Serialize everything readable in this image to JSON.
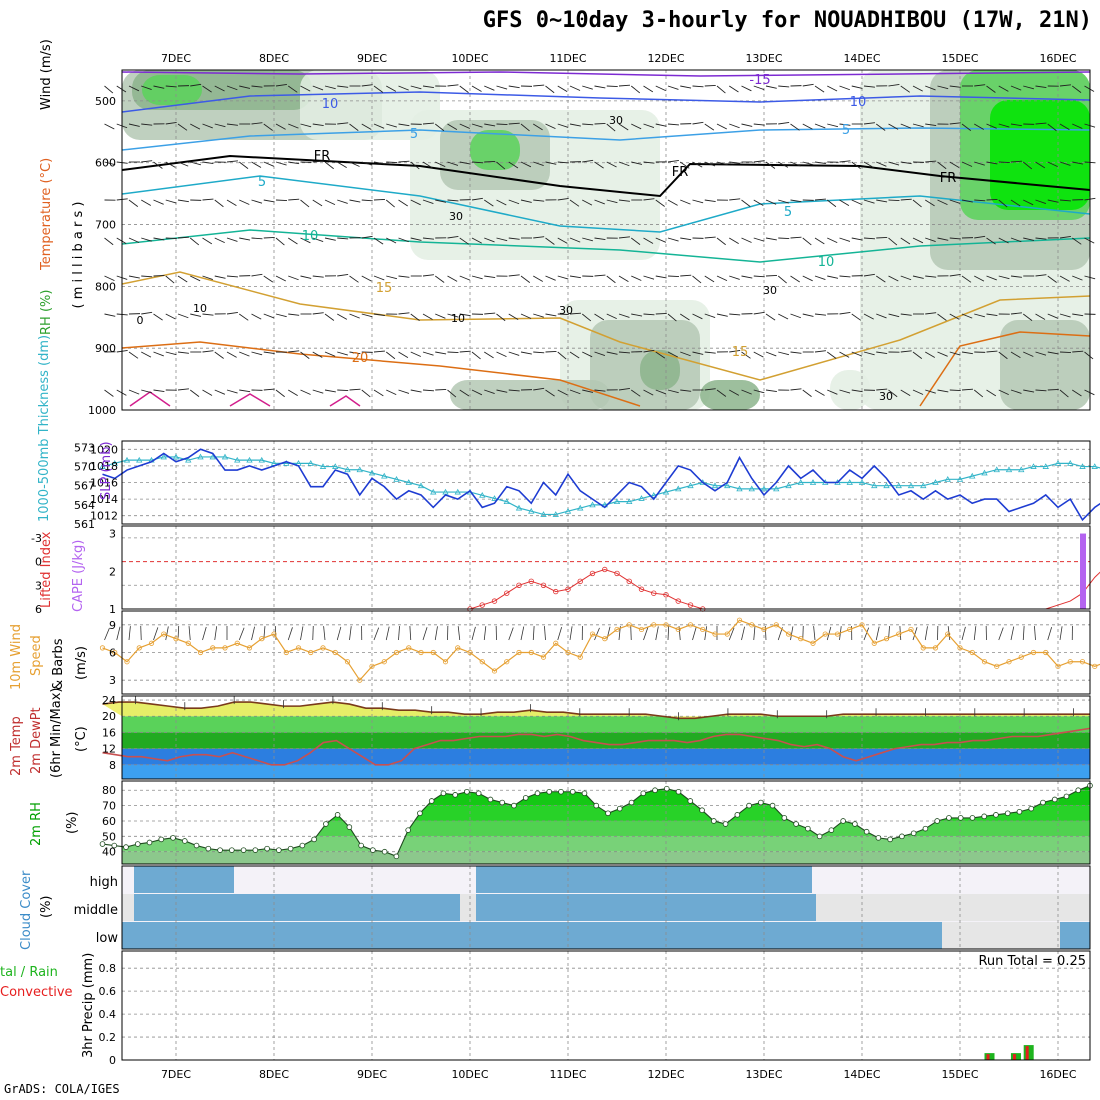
{
  "title": "GFS 0~10day 3-hourly for NOUADHIBOU (17W, 21N)",
  "credit": "GrADS: COLA/IGES",
  "dates": [
    "7DEC",
    "8DEC",
    "9DEC",
    "10DEC",
    "11DEC",
    "12DEC",
    "13DEC",
    "14DEC",
    "15DEC",
    "16DEC"
  ],
  "colors": {
    "grid": "#8c8c8c",
    "rh_light": "#e3efe3",
    "rh_mid": "#b4c8b4",
    "rh_dark": "#8cb48c",
    "rh_green": "#5ad25a",
    "rh_bright": "#00e600",
    "slp": "#1e3cd2",
    "thick": "#32b4c8",
    "li": "#e03232",
    "cape": "#b464f0",
    "wind": "#e6a032",
    "tmax": "#f0f064",
    "dew": "#c85050",
    "rh2": "#00c800",
    "cloud": "#6eaad2",
    "cloud_bg": "#e6e6e6",
    "precip_total": "#1eb41e",
    "precip_conv": "#e61e1e"
  },
  "panels": {
    "upper": {
      "left_labels": [
        "RH (%)",
        "Temperature (°C)",
        "Wind (m/s)"
      ],
      "yaxis_title": "( m i l l i b a r s )",
      "yticks": [
        "500",
        "600",
        "700",
        "800",
        "900",
        "1000"
      ],
      "contour_labels": [
        "-15",
        "10",
        "10",
        "5",
        "5",
        "FR",
        "FR",
        "FR",
        "5",
        "5",
        "10",
        "10",
        "15",
        "15",
        "20",
        "30",
        "30",
        "30",
        "30",
        "30",
        "10",
        "10",
        "0"
      ]
    },
    "slp": {
      "left_label": "1000-500mb Thickness (dm)",
      "right_label": "SLP (mb)",
      "yticks_left": [
        "573",
        "570",
        "567",
        "564",
        "561"
      ],
      "yticks_right": [
        "1020",
        "1018",
        "1016",
        "1014",
        "1012"
      ]
    },
    "li": {
      "left_label": "Lifted Index",
      "right_label": "CAPE (J/kg)",
      "yticks_left": [
        "-3",
        "0",
        "3",
        "6"
      ],
      "yticks_right": [
        "3",
        "2",
        "1"
      ]
    },
    "wind10": {
      "left_label": "10m Wind",
      "speed_label": "Speed",
      "barbs_label": "& Barbs",
      "units": "(m/s)",
      "yticks": [
        "9",
        "6",
        "3"
      ]
    },
    "temp2m": {
      "label_1": "2m Temp",
      "label_2": "2m DewPt",
      "label_3": "(6hr Min/Max)",
      "units": "(°C)",
      "yticks": [
        "24",
        "20",
        "16",
        "12",
        "8"
      ]
    },
    "rh2m": {
      "label": "2m RH",
      "units": "(%)",
      "yticks": [
        "80",
        "70",
        "60",
        "50",
        "40"
      ]
    },
    "cloud": {
      "label": "Cloud Cover",
      "units": "(%)",
      "levels": [
        "high",
        "middle",
        "low"
      ]
    },
    "precip": {
      "label_1": "tal / Rain",
      "label_2": "Convective",
      "axis": "3hr Precip (mm)",
      "yticks": [
        "0.8",
        "0.6",
        "0.4",
        "0.2",
        "0"
      ],
      "run_total": "Run Total = 0.25"
    }
  },
  "chart_data": {
    "type": "line",
    "x_dates": [
      "7DEC",
      "8DEC",
      "9DEC",
      "10DEC",
      "11DEC",
      "12DEC",
      "13DEC",
      "14DEC",
      "15DEC",
      "16DEC"
    ],
    "steps_per_day": 8,
    "slp_mb": [
      1017,
      1016.5,
      1017.5,
      1018,
      1018.5,
      1019.5,
      1018.5,
      1019,
      1020,
      1019.5,
      1017.5,
      1017.5,
      1018,
      1017.5,
      1018,
      1018.5,
      1018,
      1015.5,
      1015.5,
      1017.5,
      1017,
      1014.5,
      1016.5,
      1015.5,
      1014,
      1015,
      1014.5,
      1013,
      1014.5,
      1014,
      1015,
      1013,
      1013.5,
      1015.5,
      1015,
      1013.5,
      1016,
      1014.5,
      1017,
      1015,
      1014,
      1013,
      1014.5,
      1016,
      1015.5,
      1014,
      1016,
      1018,
      1017.5,
      1016,
      1015,
      1016,
      1019,
      1016.5,
      1014.5,
      1016,
      1018,
      1016.5,
      1017.5,
      1016,
      1016,
      1017.5,
      1016.5,
      1018,
      1016.5,
      1014.5,
      1015,
      1014,
      1015,
      1014,
      1014.5,
      1013.5,
      1014,
      1014,
      1012.5,
      1013,
      1013.5,
      1014.5,
      1013,
      1014,
      1011.5,
      1013,
      1014,
      1014.5
    ],
    "thickness_dm": [
      570,
      570.5,
      571,
      571,
      571,
      571.5,
      571.5,
      571,
      571.5,
      571.5,
      571.5,
      571,
      571,
      571,
      570.5,
      570.5,
      570.5,
      570.5,
      570,
      570,
      569.5,
      569.5,
      569,
      568.5,
      568,
      567.5,
      567,
      566,
      566,
      566,
      566,
      565.5,
      565,
      564.5,
      563.5,
      563,
      562.5,
      562.5,
      563,
      563.5,
      564,
      564,
      564.5,
      564.5,
      565,
      565.5,
      566,
      566.5,
      567,
      567.5,
      567,
      567,
      566.5,
      566.5,
      566.5,
      566.5,
      567,
      567.5,
      567.5,
      567.5,
      567.5,
      567.5,
      567.5,
      567,
      567,
      567,
      567,
      567,
      567.5,
      568,
      568,
      568.5,
      569,
      569.5,
      569.5,
      569.5,
      570,
      570,
      570.5,
      570.5,
      570,
      570,
      569.5,
      569.5
    ],
    "lifted_index_visible_segment": [
      6,
      5.5,
      5,
      4,
      3,
      2.5,
      3,
      3.8,
      3.5,
      2.5,
      1.5,
      1,
      1.5,
      2.5,
      3.5,
      4,
      4.2,
      5,
      5.5,
      6
    ],
    "cape_last_bar_jkg": 3,
    "wind10_ms": [
      6.5,
      6,
      5,
      6.5,
      7,
      8,
      7.5,
      7,
      6,
      6.5,
      6.5,
      7,
      6.5,
      7.5,
      8,
      6,
      6.5,
      6,
      6.5,
      6,
      5,
      3,
      4.5,
      5,
      6,
      6.5,
      6,
      6,
      5,
      6.5,
      6,
      5,
      4,
      5,
      6,
      6,
      5.5,
      7,
      6,
      5.5,
      8,
      7.5,
      8.5,
      9,
      8.5,
      9,
      9,
      8.5,
      9,
      8.5,
      8,
      8,
      9.5,
      9,
      8.5,
      9,
      8,
      7.5,
      7,
      8,
      8,
      8.5,
      9,
      7,
      7.5,
      8,
      8.5,
      6.5,
      6.5,
      8,
      6.5,
      6,
      5,
      4.5,
      5,
      5.5,
      6,
      6,
      4.5,
      5,
      5,
      4.5,
      5,
      3.5,
      4,
      5,
      6,
      3,
      4,
      6,
      5,
      4,
      3
    ],
    "temp2m_c": [
      23,
      23.5,
      23.5,
      23,
      22.5,
      22,
      22,
      22.5,
      23.5,
      23.5,
      23,
      22.5,
      22.5,
      23,
      23.5,
      23,
      22,
      22,
      21.5,
      21.5,
      21,
      21,
      20.5,
      20.5,
      21,
      21,
      21.5,
      21,
      21,
      20.5,
      20.5,
      20.5,
      20.5,
      20.5,
      20,
      19.5,
      19.5,
      20,
      20.5,
      20.5,
      20.5,
      20,
      20,
      20,
      20,
      20.5,
      20.5,
      20.5,
      20.5,
      20.5,
      20.5,
      20.5,
      20.5,
      20.5,
      20.5,
      20.5,
      20.5,
      20.5,
      20.5,
      20.5,
      20.5
    ],
    "dewpt2m_c": [
      11,
      10.5,
      10,
      10,
      9.5,
      9,
      10,
      10.5,
      10.5,
      10,
      11,
      10,
      9,
      8,
      8,
      9,
      11,
      13.5,
      14,
      12,
      10,
      8,
      8,
      9,
      12,
      13,
      14,
      14,
      14.5,
      15,
      15,
      15,
      15.5,
      15.5,
      15,
      15.5,
      15,
      14,
      13.5,
      13,
      13,
      13.5,
      14,
      14,
      14,
      13.5,
      14,
      15,
      15.5,
      15.5,
      15,
      14.5,
      14,
      13,
      12.5,
      13,
      12,
      10,
      9,
      10,
      11,
      12,
      12.5,
      13,
      13,
      13.5,
      13.5,
      14,
      14,
      14.5,
      15,
      15,
      15,
      15.5,
      16,
      16.5,
      17
    ],
    "rh2m_pct": [
      45,
      44,
      43,
      45,
      46,
      48,
      49,
      47,
      44,
      42,
      41,
      41,
      41,
      41,
      42,
      41,
      42,
      44,
      48,
      58,
      64,
      56,
      44,
      41,
      40,
      37,
      54,
      65,
      73,
      78,
      77,
      79,
      78,
      74,
      72,
      70,
      75,
      78,
      79,
      79,
      79,
      78,
      70,
      65,
      68,
      72,
      78,
      80,
      81,
      79,
      73,
      67,
      60,
      58,
      64,
      70,
      72,
      70,
      62,
      58,
      55,
      50,
      54,
      60,
      58,
      53,
      49,
      48,
      50,
      52,
      55,
      60,
      62,
      62,
      62,
      63,
      64,
      65,
      66,
      68,
      72,
      74,
      76,
      80,
      83
    ],
    "precip_total_mm": [
      {
        "day": "15DEC",
        "offset": 0.25,
        "value": 0.06
      },
      {
        "day": "15DEC",
        "offset": 0.52,
        "value": 0.06
      },
      {
        "day": "15DEC",
        "offset": 0.65,
        "value": 0.13
      }
    ],
    "precip_run_total_mm": 0.25
  }
}
